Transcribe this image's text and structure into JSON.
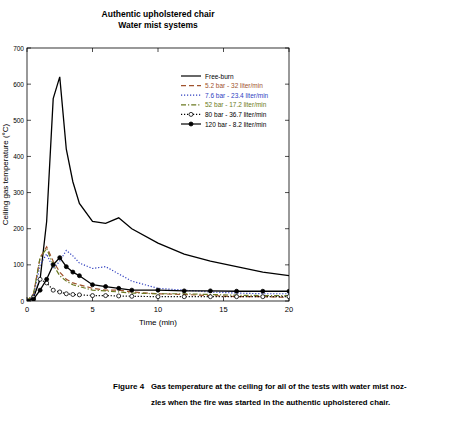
{
  "chart_data": {
    "type": "line",
    "title": "Authentic upholstered chair",
    "subtitle": "Water mist systems",
    "x_label": "Time (min)",
    "y_label": "Ceiling gas temperature (°C)",
    "x": [
      0,
      0.5,
      1,
      1.5,
      2,
      2.5,
      3,
      3.5,
      4,
      5,
      6,
      7,
      8,
      10,
      12,
      14,
      16,
      18,
      20
    ],
    "series": [
      {
        "name": "Free-burn",
        "color": "#000000",
        "line_style": "solid",
        "marker": "none",
        "values": [
          0,
          10,
          60,
          220,
          560,
          620,
          420,
          330,
          270,
          220,
          215,
          230,
          200,
          160,
          130,
          110,
          95,
          80,
          70
        ]
      },
      {
        "name": "5.2 bar - 32 liter/min",
        "color": "#a0522d",
        "line_style": "dashed",
        "marker": "none",
        "values": [
          0,
          20,
          120,
          150,
          110,
          80,
          60,
          50,
          45,
          35,
          30,
          30,
          25,
          20,
          18,
          15,
          12,
          12,
          10
        ]
      },
      {
        "name": "7.6 bar - 23.4 liter/min",
        "color": "#2f3fbf",
        "line_style": "dotted",
        "marker": "none",
        "values": [
          0,
          15,
          100,
          130,
          90,
          110,
          140,
          125,
          105,
          90,
          95,
          75,
          55,
          35,
          30,
          25,
          22,
          20,
          20
        ]
      },
      {
        "name": "52 bar - 17.2 liter/min",
        "color": "#6b7a23",
        "line_style": "dashdot",
        "marker": "none",
        "values": [
          0,
          20,
          120,
          145,
          100,
          70,
          55,
          45,
          40,
          30,
          28,
          25,
          22,
          20,
          20,
          18,
          16,
          15,
          15
        ]
      },
      {
        "name": "80 bar - 36.7 liter/min",
        "color": "#000000",
        "line_style": "dotted",
        "marker": "open-circle",
        "values": [
          0,
          10,
          60,
          50,
          30,
          25,
          20,
          18,
          17,
          15,
          15,
          14,
          13,
          12,
          12,
          12,
          12,
          12,
          12
        ]
      },
      {
        "name": "120 bar - 8.2 liter/min",
        "color": "#000000",
        "line_style": "solid",
        "marker": "circle",
        "values": [
          0,
          5,
          30,
          60,
          100,
          120,
          95,
          80,
          70,
          45,
          40,
          35,
          30,
          30,
          28,
          28,
          27,
          27,
          27
        ]
      }
    ],
    "xlim": [
      0,
      20
    ],
    "xticks": [
      0,
      5,
      10,
      15,
      20
    ],
    "ylim": [
      0,
      700
    ],
    "yticks": [
      0,
      100,
      200,
      300,
      400,
      500,
      600,
      700
    ],
    "legend": "upper right",
    "grid": false
  },
  "figure_caption": {
    "number": "Figure 4",
    "lines": [
      "Gas temperature at the ceiling for all of the tests with water mist noz-",
      "zles when the fire was started in the authentic upholstered chair."
    ]
  }
}
